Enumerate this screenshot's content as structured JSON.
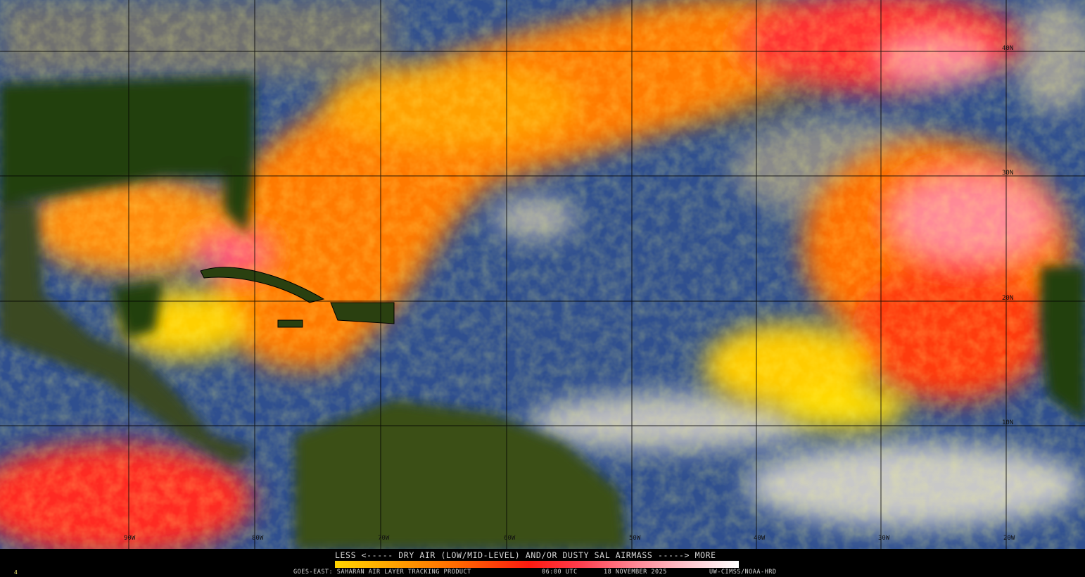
{
  "map": {
    "longitude_labels": [
      "90W",
      "80W",
      "70W",
      "60W",
      "50W",
      "40W",
      "30W",
      "20W"
    ],
    "latitude_labels": [
      "40N",
      "30N",
      "20N",
      "10N"
    ],
    "colors": {
      "ocean": "#2f4f8f",
      "land": "#1f3a0f",
      "cloud": "#b8b8b8",
      "low_sal": "#ffd400",
      "mid_sal": "#ff6a00",
      "high_sal": "#ff2020",
      "max_sal": "#ff9aa8"
    }
  },
  "legend": {
    "title": "LESS <----- DRY AIR (LOW/MID-LEVEL) AND/OR DUSTY SAL AIRMASS -----> MORE",
    "scale": [
      "#ffd400",
      "#ff6a00",
      "#ff1a10",
      "#ff8a98",
      "#ffffff"
    ]
  },
  "footer": {
    "frame": "4",
    "product": "GOES-EAST: SAHARAN AIR LAYER TRACKING PRODUCT",
    "time": "06:00 UTC",
    "date": "18 NOVEMBER 2025",
    "credit": "UW-CIMSS/NOAA-HRD"
  }
}
